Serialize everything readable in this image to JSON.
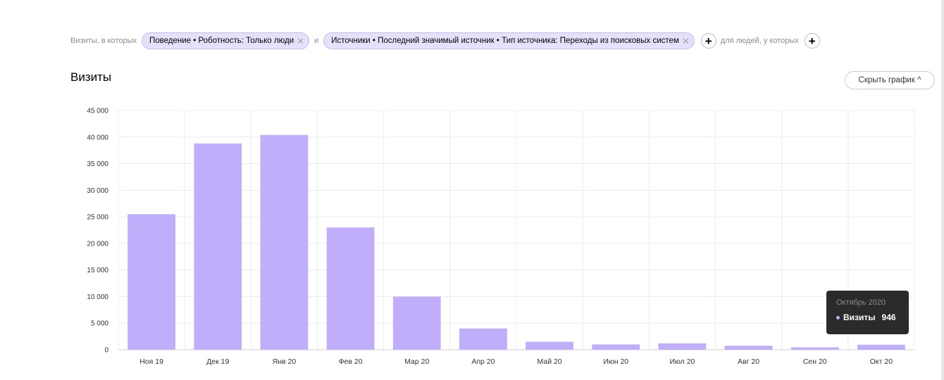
{
  "filters": {
    "prefix": "Визиты, в которых",
    "chip1": "Поведение • Роботность: Только люди",
    "joiner": "и",
    "chip2": "Источники • Последний значимый источник • Тип источника: Переходы из поисковых систем",
    "people_label": "для людей, у которых"
  },
  "header": {
    "title": "Визиты",
    "hide_chart_label": "Скрыть график ^"
  },
  "tooltip": {
    "title": "Октябрь 2020",
    "series_label": "Визиты",
    "value": "946"
  },
  "colors": {
    "bar": "#c0aefa",
    "tooltip_bg": "#2b2b2b",
    "chip_bg": "#e6e0fb"
  },
  "chart_data": {
    "type": "bar",
    "categories": [
      "Ноя 19",
      "Дек 19",
      "Янв 20",
      "Фев 20",
      "Мар 20",
      "Апр 20",
      "Май 20",
      "Июн 20",
      "Июл 20",
      "Авг 20",
      "Сен 20",
      "Окт 20"
    ],
    "series": [
      {
        "name": "Визиты",
        "values": [
          25500,
          38800,
          40400,
          23000,
          10000,
          4000,
          1500,
          1000,
          1200,
          750,
          450,
          946
        ]
      }
    ],
    "y_ticks": [
      "0",
      "5 000",
      "10 000",
      "15 000",
      "20 000",
      "25 000",
      "30 000",
      "35 000",
      "40 000",
      "45 000"
    ],
    "ylim": [
      0,
      45000
    ],
    "grid": true
  }
}
